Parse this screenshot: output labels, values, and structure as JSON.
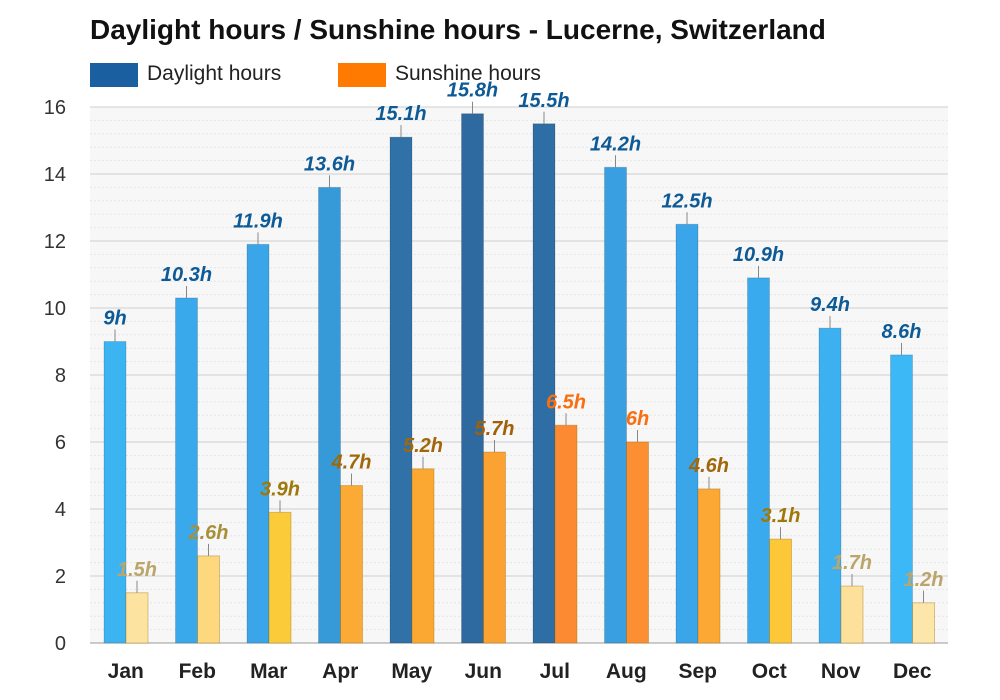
{
  "title": "Daylight hours / Sunshine hours - Lucerne, Switzerland",
  "legend": [
    {
      "label": "Daylight hours",
      "color": "#1a5fa0"
    },
    {
      "label": "Sunshine hours",
      "color": "#ff7a00"
    }
  ],
  "chart_data": {
    "type": "bar",
    "title": "Daylight hours / Sunshine hours - Lucerne, Switzerland",
    "xlabel": "",
    "ylabel": "",
    "ylim": [
      0,
      16
    ],
    "yticks": [
      0,
      2,
      4,
      6,
      8,
      10,
      12,
      14,
      16
    ],
    "grid": true,
    "legend_position": "top-left",
    "categories": [
      "Jan",
      "Feb",
      "Mar",
      "Apr",
      "May",
      "Jun",
      "Jul",
      "Aug",
      "Sep",
      "Oct",
      "Nov",
      "Dec"
    ],
    "series": [
      {
        "name": "Daylight hours",
        "values": [
          9,
          10.3,
          11.9,
          13.6,
          15.1,
          15.8,
          15.5,
          14.2,
          12.5,
          10.9,
          9.4,
          8.6
        ],
        "labels": [
          "9h",
          "10.3h",
          "11.9h",
          "13.6h",
          "15.1h",
          "15.8h",
          "15.5h",
          "14.2h",
          "12.5h",
          "10.9h",
          "9.4h",
          "8.6h"
        ],
        "colors": [
          "#3db4f2",
          "#3aa9ec",
          "#3aa5e8",
          "#369ad9",
          "#3072a8",
          "#2e6aa0",
          "#2f6ea4",
          "#399fe0",
          "#3aa5e8",
          "#3aaaee",
          "#3db0f2",
          "#3db8f6"
        ],
        "label_color": "#0d5a96"
      },
      {
        "name": "Sunshine hours",
        "values": [
          1.5,
          2.6,
          3.9,
          4.7,
          5.2,
          5.7,
          6.5,
          6,
          4.6,
          3.1,
          1.7,
          1.2
        ],
        "labels": [
          "1.5h",
          "2.6h",
          "3.9h",
          "4.7h",
          "5.2h",
          "5.7h",
          "6.5h",
          "6h",
          "4.6h",
          "3.1h",
          "1.7h",
          "1.2h"
        ],
        "colors": [
          "#fde3a0",
          "#fdd87f",
          "#fccb3a",
          "#fbab35",
          "#fba832",
          "#fba232",
          "#fb8a32",
          "#fb8f32",
          "#fba835",
          "#fcc838",
          "#fde09a",
          "#fde6aa"
        ],
        "label_colors": [
          "#bba56a",
          "#a88f3a",
          "#a0780a",
          "#a0680a",
          "#a0680a",
          "#a0600a",
          "#fb6e10",
          "#fb6e10",
          "#a0680a",
          "#a0780a",
          "#bba56a",
          "#bba56a"
        ]
      }
    ]
  }
}
